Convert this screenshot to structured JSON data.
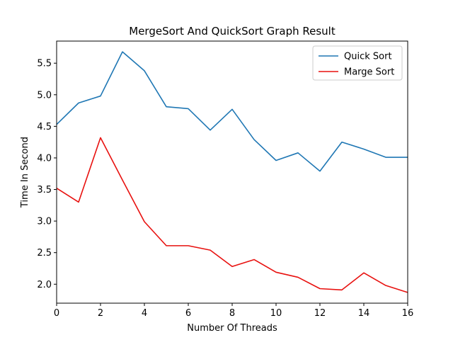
{
  "chart_data": {
    "type": "line",
    "title": "MergeSort And QuickSort Graph Result",
    "xlabel": "Number Of Threads",
    "ylabel": "Time In Second",
    "xlim": [
      0,
      16
    ],
    "ylim": [
      1.7,
      5.85
    ],
    "xticks": [
      0,
      2,
      4,
      6,
      8,
      10,
      12,
      14,
      16
    ],
    "yticks": [
      2.0,
      2.5,
      3.0,
      3.5,
      4.0,
      4.5,
      5.0,
      5.5
    ],
    "grid": false,
    "legend_position": "top-right",
    "x": [
      0,
      1,
      2,
      3,
      4,
      5,
      6,
      7,
      8,
      9,
      10,
      11,
      12,
      13,
      14,
      15,
      16
    ],
    "series": [
      {
        "name": "Quick Sort",
        "color": "#1f77b4",
        "values": [
          4.53,
          4.87,
          4.98,
          5.68,
          5.38,
          4.81,
          4.78,
          4.44,
          4.77,
          4.29,
          3.96,
          4.08,
          3.79,
          4.25,
          4.14,
          4.01,
          4.01
        ]
      },
      {
        "name": "Marge Sort",
        "color": "#e8110f",
        "values": [
          3.52,
          3.3,
          4.32,
          3.65,
          2.99,
          2.61,
          2.61,
          2.54,
          2.28,
          2.39,
          2.19,
          2.11,
          1.93,
          1.91,
          2.18,
          1.98,
          1.87
        ]
      }
    ]
  }
}
